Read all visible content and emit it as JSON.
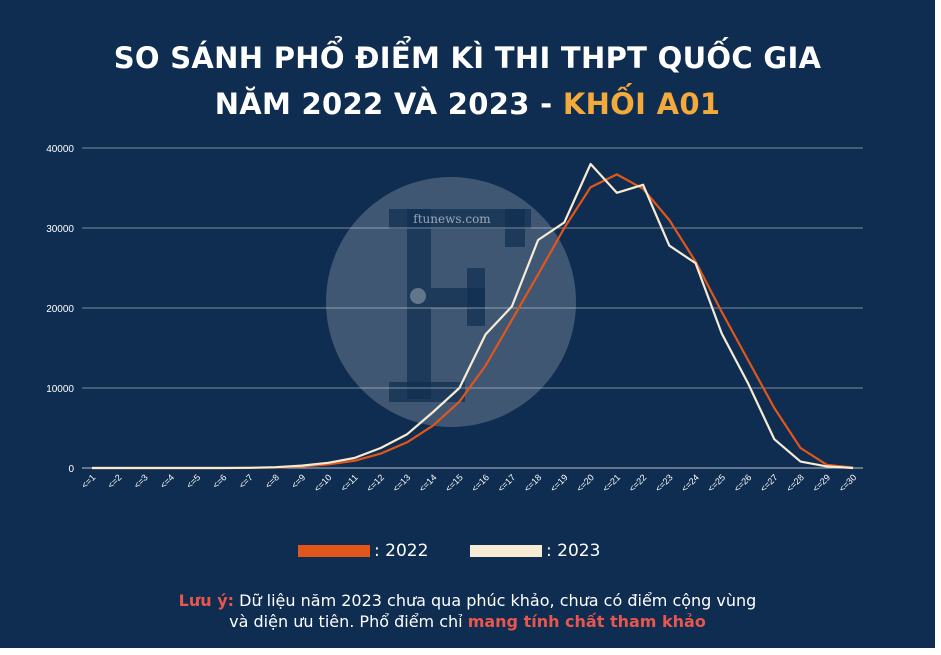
{
  "title": {
    "line1": "SO SÁNH PHỔ ĐIỂM KÌ THI THPT QUỐC GIA",
    "line2_prefix": "NĂM 2022 VÀ 2023 - ",
    "line2_highlight": "KHỐI A01"
  },
  "watermark": {
    "text": "ftunews.com",
    "letter": "F"
  },
  "colors": {
    "background": "#0f2d50",
    "series_2022": "#e0561b",
    "series_2023": "#f7ebd3",
    "title_highlight": "#f4a93b",
    "note_highlight": "#e8564d"
  },
  "legend": [
    {
      "label": ": 2022",
      "color": "#e0561b"
    },
    {
      "label": ": 2023",
      "color": "#f7ebd3"
    }
  ],
  "note": {
    "label": "Lưu ý:",
    "text1": " Dữ liệu năm 2023 chưa qua phúc khảo, chưa có điểm cộng vùng",
    "text2": "và diện ưu tiên. Phổ điểm chỉ ",
    "highlight": "mang tính chất tham khảo"
  },
  "chart_data": {
    "type": "line",
    "categories": [
      "<=1",
      "<=2",
      "<=3",
      "<=4",
      "<=5",
      "<=6",
      "<=7",
      "<=8",
      "<=9",
      "<=10",
      "<=11",
      "<=12",
      "<=13",
      "<=14",
      "<=15",
      "<=16",
      "<=17",
      "<=18",
      "<=19",
      "<=20",
      "<=21",
      "<=22",
      "<=23",
      "<=24",
      "<=25",
      "<=26",
      "<=27",
      "<=28",
      "<=29",
      "<=30"
    ],
    "y_ticks": [
      "0",
      "10000",
      "20000",
      "30000",
      "40000"
    ],
    "ylim": [
      0,
      40000
    ],
    "grid": true,
    "legend_position": "bottom",
    "series": [
      {
        "name": ": 2022",
        "color": "#e0561b",
        "values": [
          0,
          0,
          0,
          0,
          0,
          0,
          10,
          60,
          200,
          450,
          900,
          1800,
          3200,
          5300,
          8300,
          12800,
          18500,
          24200,
          30000,
          35100,
          36700,
          34900,
          31000,
          25800,
          19500,
          13500,
          7500,
          2500,
          400,
          50
        ]
      },
      {
        "name": ": 2023",
        "color": "#f7ebd3",
        "values": [
          0,
          0,
          0,
          0,
          0,
          0,
          20,
          100,
          300,
          650,
          1250,
          2500,
          4200,
          7000,
          10000,
          16700,
          20200,
          28500,
          30700,
          38000,
          34400,
          35400,
          27800,
          25600,
          16800,
          10600,
          3600,
          800,
          200,
          0
        ]
      }
    ]
  }
}
